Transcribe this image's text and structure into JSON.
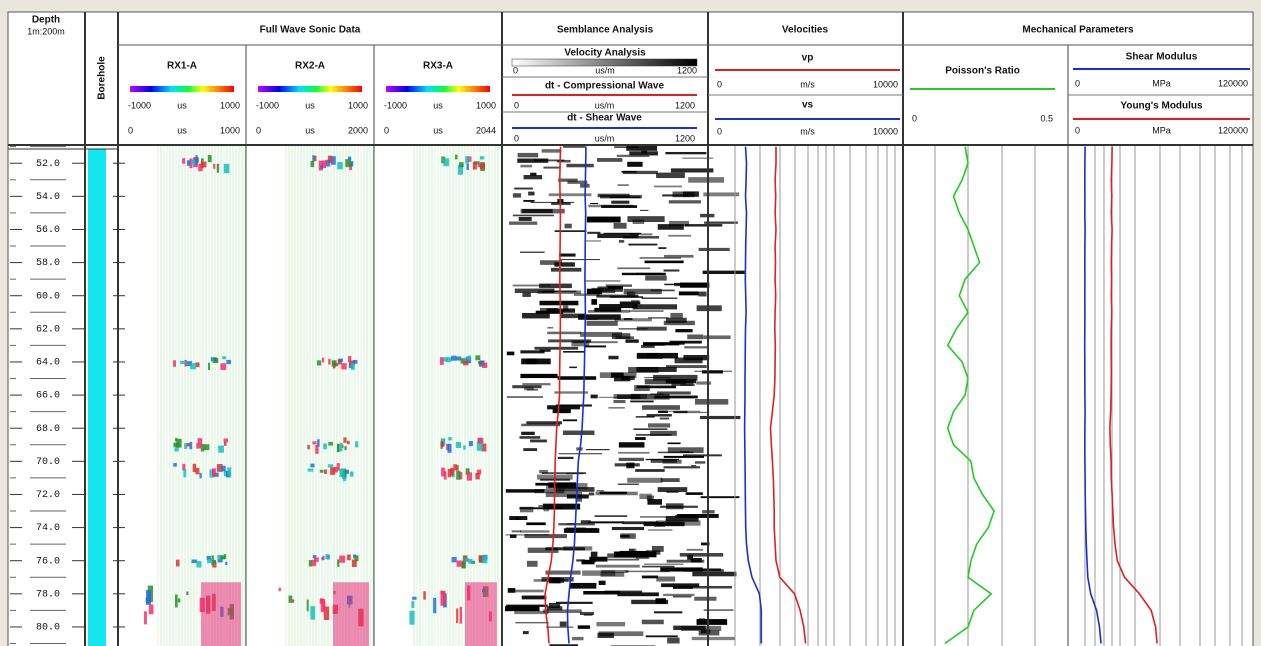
{
  "header": {
    "depth_title": "Depth",
    "depth_scale": "1m:200m",
    "borehole": "Borehole",
    "full_wave_title": "Full Wave Sonic Data",
    "semblance_title": "Semblance Analysis",
    "velocities_title": "Velocities",
    "mechanical_title": "Mechanical Parameters"
  },
  "receivers": [
    {
      "name": "RX1-A",
      "amp_min": -1000,
      "amp_unit": "us",
      "amp_max": 1000,
      "time_min": 0,
      "time_unit": "us",
      "time_max": 1000
    },
    {
      "name": "RX2-A",
      "amp_min": -1000,
      "amp_unit": "us",
      "amp_max": 1000,
      "time_min": 0,
      "time_unit": "us",
      "time_max": 2000
    },
    {
      "name": "RX3-A",
      "amp_min": -1000,
      "amp_unit": "us",
      "amp_max": 1000,
      "time_min": 0,
      "time_unit": "us",
      "time_max": 2044
    }
  ],
  "semblance_scale": {
    "name": "Velocity Analysis",
    "unit": "us/m",
    "min": 0,
    "max": 1200
  },
  "log": {
    "ylim": [
      50.9,
      81.15
    ],
    "depth_ticks": [
      {
        "value": 52,
        "label": "52.0"
      },
      {
        "value": 54,
        "label": "54.0"
      },
      {
        "value": 56,
        "label": "56.0"
      },
      {
        "value": 58,
        "label": "58.0"
      },
      {
        "value": 60,
        "label": "60.0"
      },
      {
        "value": 62,
        "label": "62.0"
      },
      {
        "value": 64,
        "label": "64.0"
      },
      {
        "value": 66,
        "label": "66.0"
      },
      {
        "value": 68,
        "label": "68.0"
      },
      {
        "value": 70,
        "label": "70.0"
      },
      {
        "value": 72,
        "label": "72.0"
      },
      {
        "value": 74,
        "label": "74.0"
      },
      {
        "value": 76,
        "label": "76.0"
      },
      {
        "value": 78,
        "label": "78.0"
      },
      {
        "value": 80,
        "label": "80.0"
      }
    ],
    "depth": [
      51,
      52,
      53,
      54,
      55,
      56,
      57,
      58,
      59,
      60,
      61,
      62,
      63,
      64,
      65,
      66,
      67,
      68,
      69,
      70,
      71,
      72,
      73,
      74,
      75,
      76,
      77,
      78,
      79,
      80,
      81
    ],
    "curves": [
      {
        "name": "dt - Compressional Wave",
        "unit": "us/m",
        "xlim": [
          0,
          1200
        ],
        "color": "#e02020",
        "values": [
          315,
          312,
          310,
          312,
          314,
          313,
          312,
          311,
          310,
          312,
          314,
          313,
          312,
          310,
          309,
          308,
          300,
          290,
          285,
          280,
          278,
          276,
          275,
          272,
          265,
          255,
          235,
          215,
          218,
          232,
          240
        ]
      },
      {
        "name": "dt - Shear Wave",
        "unit": "us/m",
        "xlim": [
          0,
          1200
        ],
        "color": "#1a2fd0",
        "values": [
          480,
          478,
          476,
          474,
          478,
          476,
          475,
          474,
          473,
          475,
          476,
          474,
          472,
          470,
          468,
          466,
          460,
          455,
          445,
          430,
          425,
          420,
          415,
          410,
          405,
          395,
          380,
          370,
          360,
          362,
          370
        ]
      },
      {
        "name": "vp",
        "unit": "m/s",
        "xlim": [
          0,
          10000
        ],
        "color": "#e02020",
        "values": [
          3300,
          3300,
          3250,
          3280,
          3250,
          3300,
          3250,
          3270,
          3250,
          3280,
          3250,
          3230,
          3260,
          3250,
          3240,
          3200,
          3100,
          3000,
          3050,
          3100,
          3150,
          3180,
          3200,
          3200,
          3250,
          3300,
          3500,
          4300,
          4600,
          4800,
          4900
        ]
      },
      {
        "name": "vs",
        "unit": "m/s",
        "xlim": [
          0,
          10000
        ],
        "color": "#1a2fd0",
        "values": [
          1650,
          1700,
          1680,
          1650,
          1700,
          1680,
          1660,
          1650,
          1640,
          1660,
          1680,
          1650,
          1640,
          1630,
          1620,
          1620,
          1610,
          1600,
          1610,
          1620,
          1630,
          1640,
          1650,
          1660,
          1700,
          1800,
          2000,
          2400,
          2500,
          2500,
          2500
        ]
      },
      {
        "name": "Poisson's Ratio",
        "xlim": [
          0,
          0.5
        ],
        "color": "#22cc22",
        "values": [
          0.19,
          0.2,
          0.18,
          0.15,
          0.17,
          0.2,
          0.22,
          0.24,
          0.19,
          0.17,
          0.2,
          0.16,
          0.13,
          0.18,
          0.2,
          0.19,
          0.15,
          0.13,
          0.15,
          0.21,
          0.22,
          0.25,
          0.29,
          0.27,
          0.23,
          0.21,
          0.2,
          0.28,
          0.22,
          0.2,
          0.12
        ]
      },
      {
        "name": "Shear Modulus",
        "unit": "MPa",
        "xlim": [
          0,
          120000
        ],
        "color": "#1a2fd0",
        "values": [
          8200,
          8100,
          8000,
          8100,
          8000,
          8200,
          8100,
          8000,
          8100,
          8000,
          8100,
          8000,
          7900,
          8000,
          8000,
          8100,
          8200,
          8100,
          8000,
          8100,
          8200,
          8300,
          8500,
          8700,
          9000,
          9500,
          10000,
          12000,
          16000,
          18000,
          19000
        ]
      },
      {
        "name": "Young's Modulus",
        "unit": "MPa",
        "xlim": [
          0,
          120000
        ],
        "color": "#e02020",
        "values": [
          26500,
          26400,
          26000,
          26300,
          26000,
          26500,
          26200,
          26000,
          26200,
          26000,
          26300,
          26000,
          25800,
          26000,
          26000,
          25800,
          25500,
          25000,
          25300,
          25800,
          26000,
          26500,
          27000,
          27500,
          28500,
          30000,
          35000,
          45000,
          53000,
          56000,
          57000
        ]
      }
    ]
  }
}
